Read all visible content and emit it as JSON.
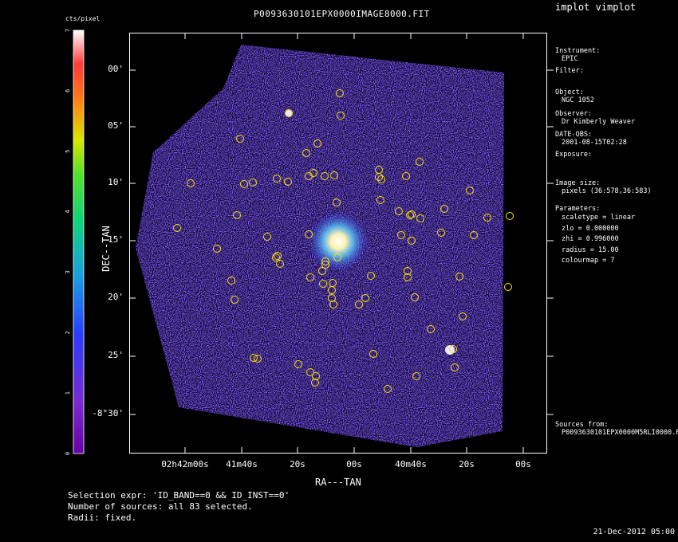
{
  "app_title": "implot vimplot",
  "image_title": "P0093630101EPX0000IMAGE8000.FIT",
  "colorbar": {
    "unit": "cts/pixel",
    "tick_labels": [
      "0",
      "1",
      "2",
      "3",
      "4",
      "5",
      "6",
      "7"
    ]
  },
  "axes": {
    "xlabel": "RA---TAN",
    "ylabel": "DEC--TAN",
    "x_ticks": [
      {
        "h": "02",
        "m": "42",
        "s": "00",
        "label_pre": "02",
        "lbl": "02h42m00s"
      },
      {
        "lbl": "41m40s"
      },
      {
        "lbl": "20s"
      },
      {
        "lbl": "00s"
      },
      {
        "lbl": "40m40s"
      },
      {
        "lbl": "20s"
      },
      {
        "lbl": "00s"
      }
    ],
    "y_ticks": [
      "00'",
      "05'",
      "10'",
      "15'",
      "20'",
      "25'",
      "-8°30'"
    ]
  },
  "side_panel": {
    "instrument_label": "Instrument:",
    "instrument_value": "EPIC",
    "filter_label": "Filter:",
    "object_label": "Object:",
    "object_value": "NGC 1052",
    "observer_label": "Observer:",
    "observer_value": "Dr Kimberly Weaver",
    "date_label": "DATE-OBS:",
    "date_value": "2001-08-15T02:28",
    "exposure_label": "Exposure:",
    "image_size_label": "Image size:",
    "image_size_value": "pixels (36:578,36:583)",
    "parameters_label": "Parameters:",
    "params": [
      "scaletype = linear",
      "zlo = 0.000000",
      "zhi = 0.996000",
      "radius =  15.00",
      "colourmap =   7"
    ],
    "sources_label": "Sources from:",
    "sources_value": "P0093630101EPX0000M5RLI0000.F"
  },
  "footer": {
    "selection": "Selection expr: 'ID_BAND==0 && ID_INST==0'",
    "count": "Number of sources: all 83 selected.",
    "radii": "Radii: fixed.",
    "timestamp": "21-Dec-2012 05:00"
  },
  "colors": {
    "source_marker": "#ffe600",
    "background": "#000000",
    "frame": "#ffffff"
  }
}
